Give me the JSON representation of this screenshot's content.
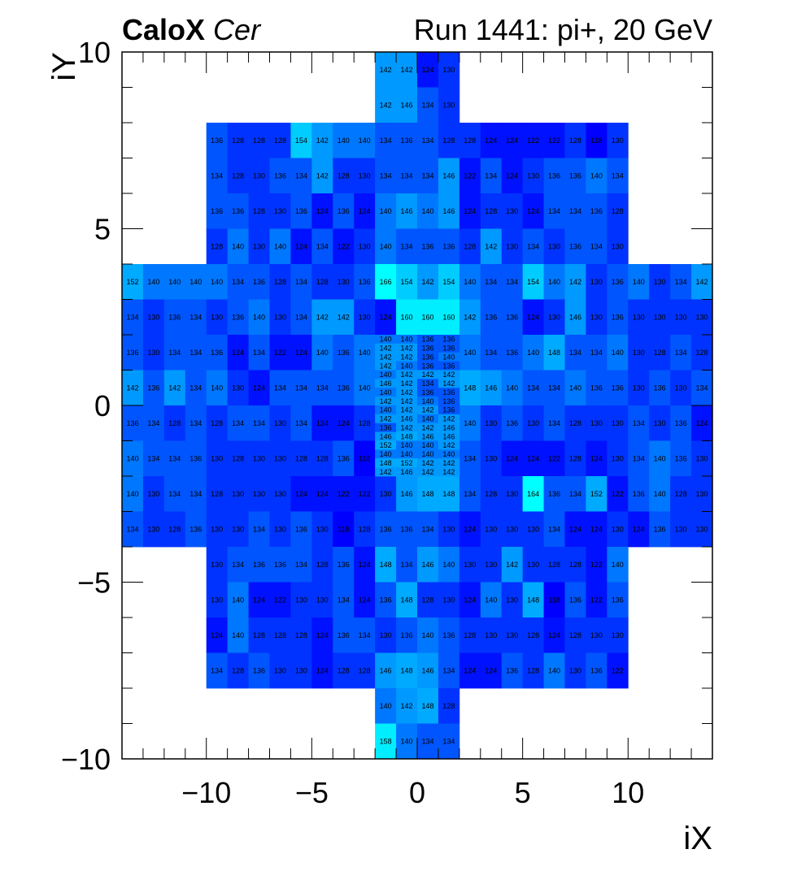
{
  "title": {
    "experiment": "CaloX",
    "channel": "Cer",
    "run_label": "Run 1441: pi+, 20 GeV"
  },
  "chart_data": {
    "type": "heatmap",
    "title": "CaloX Cer",
    "subtitle": "Run 1441: pi+, 20 GeV",
    "xlabel": "iX",
    "ylabel": "iY",
    "xlim": [
      -14,
      14
    ],
    "ylim": [
      -10,
      10
    ],
    "xticks": [
      -10,
      -5,
      0,
      5,
      10
    ],
    "yticks": [
      -10,
      -5,
      0,
      5,
      10
    ],
    "xtick_labels": [
      "−10",
      "−5",
      "0",
      "5",
      "10"
    ],
    "ytick_labels": [
      "−10",
      "−5",
      "0",
      "5",
      "10"
    ],
    "colors": [
      "#0000ff",
      "#0011ff",
      "#0033ff",
      "#0055ff",
      "#0077ff",
      "#0099ff",
      "#00aaff",
      "#00ccff",
      "#00eeff",
      "#00ffff"
    ],
    "coarse_cells": [
      {
        "iy": 9.5,
        "x0": -2,
        "values": [
          142,
          142,
          124,
          130
        ]
      },
      {
        "iy": 8.5,
        "x0": -2,
        "values": [
          142,
          146,
          134,
          130
        ]
      },
      {
        "iy": 7.5,
        "x0": -10,
        "values": [
          136,
          128,
          128,
          128,
          154,
          142,
          140,
          140,
          134,
          136,
          134,
          128,
          128,
          124,
          124,
          122,
          122,
          128,
          118,
          130
        ]
      },
      {
        "iy": 6.5,
        "x0": -10,
        "values": [
          134,
          128,
          130,
          136,
          134,
          142,
          128,
          130,
          134,
          134,
          134,
          146,
          122,
          134,
          124,
          130,
          136,
          136,
          140,
          134
        ]
      },
      {
        "iy": 5.5,
        "x0": -10,
        "values": [
          136,
          136,
          128,
          130,
          136,
          124,
          136,
          124,
          140,
          146,
          140,
          146,
          124,
          128,
          130,
          124,
          134,
          134,
          136,
          128
        ]
      },
      {
        "iy": 4.5,
        "x0": -10,
        "values": [
          128,
          140,
          130,
          140,
          124,
          134,
          122,
          130,
          140,
          134,
          136,
          136,
          128,
          142,
          130,
          134,
          130,
          136,
          134,
          130
        ]
      },
      {
        "iy": 3.5,
        "x0": -14,
        "values": [
          152,
          140,
          140,
          140,
          140,
          134,
          136,
          128,
          134,
          128,
          130,
          136,
          166,
          154,
          142,
          154,
          140,
          134,
          134,
          154,
          140,
          142,
          130,
          136,
          140,
          130,
          134,
          142
        ]
      },
      {
        "iy": 2.5,
        "x0": -14,
        "values": [
          134,
          130,
          136,
          134,
          130,
          136,
          140,
          130,
          134,
          142,
          142,
          130,
          124,
          160,
          160,
          160,
          142,
          136,
          136,
          124,
          130,
          146,
          130,
          136,
          130,
          130,
          130,
          130
        ]
      },
      {
        "iy": 1.5,
        "x0": -14,
        "values": [
          136,
          130,
          134,
          134,
          136,
          124,
          134,
          122,
          124,
          140,
          136,
          140,
          null,
          null,
          null,
          null,
          140,
          134,
          136,
          140,
          148,
          134,
          134,
          140,
          130,
          128,
          134,
          128
        ]
      },
      {
        "iy": 0.5,
        "x0": -14,
        "values": [
          142,
          136,
          142,
          134,
          140,
          130,
          124,
          134,
          134,
          134,
          136,
          140,
          null,
          null,
          null,
          null,
          148,
          146,
          140,
          134,
          134,
          140,
          136,
          136,
          130,
          136,
          130,
          134
        ]
      },
      {
        "iy": -0.5,
        "x0": -14,
        "values": [
          136,
          134,
          128,
          134,
          128,
          134,
          134,
          130,
          134,
          124,
          124,
          128,
          null,
          null,
          null,
          null,
          140,
          130,
          136,
          130,
          134,
          128,
          130,
          130,
          134,
          130,
          136,
          124
        ]
      },
      {
        "iy": -1.5,
        "x0": -14,
        "values": [
          140,
          134,
          134,
          136,
          130,
          128,
          130,
          130,
          128,
          128,
          136,
          118,
          null,
          null,
          null,
          null,
          134,
          130,
          124,
          124,
          122,
          128,
          124,
          130,
          134,
          140,
          136,
          130
        ]
      },
      {
        "iy": -2.5,
        "x0": -14,
        "values": [
          140,
          130,
          134,
          134,
          128,
          130,
          130,
          130,
          124,
          124,
          122,
          122,
          130,
          146,
          148,
          148,
          134,
          128,
          130,
          164,
          136,
          134,
          152,
          122,
          136,
          140,
          128,
          130
        ]
      },
      {
        "iy": -3.5,
        "x0": -14,
        "values": [
          134,
          130,
          128,
          136,
          130,
          130,
          134,
          130,
          136,
          130,
          118,
          128,
          136,
          136,
          134,
          130,
          124,
          130,
          130,
          130,
          134,
          124,
          124,
          130,
          124,
          136,
          130,
          130
        ]
      },
      {
        "iy": -4.5,
        "x0": -10,
        "values": [
          130,
          134,
          136,
          136,
          134,
          128,
          136,
          124,
          148,
          134,
          146,
          140,
          130,
          130,
          142,
          130,
          128,
          128,
          122,
          140
        ]
      },
      {
        "iy": -5.5,
        "x0": -10,
        "values": [
          130,
          140,
          124,
          122,
          130,
          130,
          134,
          124,
          136,
          148,
          128,
          130,
          124,
          140,
          130,
          148,
          118,
          136,
          122,
          136
        ]
      },
      {
        "iy": -6.5,
        "x0": -10,
        "values": [
          124,
          140,
          128,
          128,
          128,
          124,
          136,
          134,
          130,
          136,
          140,
          136,
          128,
          130,
          130,
          128,
          124,
          128,
          130,
          130
        ]
      },
      {
        "iy": -7.5,
        "x0": -10,
        "values": [
          134,
          128,
          136,
          130,
          130,
          124,
          128,
          128,
          146,
          148,
          146,
          134,
          124,
          124,
          136,
          128,
          140,
          130,
          136,
          122
        ]
      },
      {
        "iy": -8.5,
        "x0": -2,
        "values": [
          140,
          142,
          148,
          128
        ]
      },
      {
        "iy": -9.5,
        "x0": -2,
        "values": [
          158,
          140,
          134,
          134
        ]
      }
    ],
    "fine_cells": {
      "x0": -2,
      "y_top": 2,
      "row_height": 0.25,
      "rows": [
        [
          140,
          140,
          136,
          136
        ],
        [
          142,
          142,
          136,
          136
        ],
        [
          142,
          142,
          136,
          140
        ],
        [
          142,
          140,
          136,
          136
        ],
        [
          140,
          142,
          142,
          142
        ],
        [
          146,
          142,
          134,
          142
        ],
        [
          140,
          142,
          136,
          136
        ],
        [
          142,
          142,
          140,
          136
        ],
        [
          140,
          142,
          142,
          136
        ],
        [
          142,
          146,
          140,
          142
        ],
        [
          136,
          142,
          142,
          146
        ],
        [
          146,
          148,
          146,
          146
        ],
        [
          152,
          140,
          140,
          142
        ],
        [
          140,
          140,
          140,
          140
        ],
        [
          148,
          152,
          142,
          142
        ],
        [
          142,
          146,
          142,
          142
        ]
      ]
    }
  }
}
